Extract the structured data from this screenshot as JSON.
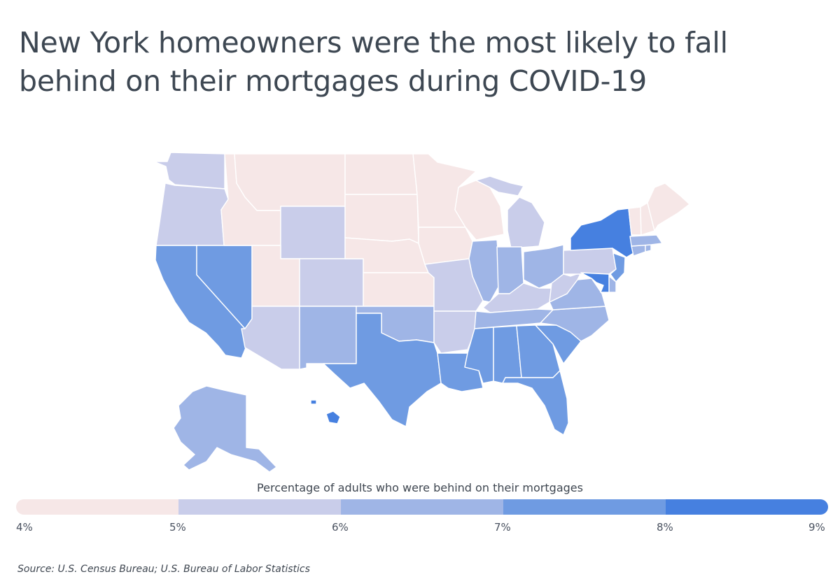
{
  "title": "New York homeowners were the most likely to fall behind on their mortgages during COVID-19",
  "legend": {
    "title": "Percentage of adults who were behind on their mortgages",
    "ticks": [
      "4%",
      "5%",
      "6%",
      "7%",
      "8%",
      "9%"
    ],
    "colors": [
      "#f6e7e7",
      "#c9cdea",
      "#9fb5e6",
      "#6f9be2",
      "#4680e0"
    ]
  },
  "source": "Source:  U.S. Census Bureau; U.S. Bureau of Labor Statistics",
  "chart_data": {
    "type": "choropleth",
    "value_label": "Percentage of adults who were behind on their mortgages",
    "scale_min": 4,
    "scale_max": 9,
    "bin_edges": [
      4,
      5,
      6,
      7,
      8,
      9
    ],
    "states": {
      "WA": 5.5,
      "OR": 5.5,
      "CA": 7.5,
      "NV": 7.5,
      "ID": 4.5,
      "MT": 4.5,
      "WY": 5.5,
      "UT": 4.5,
      "AZ": 5.5,
      "CO": 5.5,
      "NM": 6.5,
      "ND": 4.5,
      "SD": 4.5,
      "NE": 4.5,
      "KS": 4.5,
      "OK": 6.5,
      "TX": 7.5,
      "MN": 4.5,
      "IA": 4.5,
      "MO": 5.5,
      "AR": 5.5,
      "LA": 7.5,
      "WI": 4.5,
      "IL": 6.5,
      "MI": 5.5,
      "IN": 6.5,
      "OH": 6.5,
      "KY": 5.5,
      "TN": 6.5,
      "MS": 7.5,
      "AL": 7.5,
      "GA": 7.5,
      "FL": 7.5,
      "SC": 7.5,
      "NC": 6.5,
      "VA": 6.5,
      "WV": 5.5,
      "PA": 5.5,
      "NY": 8.5,
      "NJ": 7.5,
      "DE": 6.5,
      "MD": 8.5,
      "CT": 6.5,
      "RI": 6.5,
      "MA": 6.5,
      "VT": 4.5,
      "NH": 4.5,
      "ME": 4.5,
      "AK": 6.5,
      "HI": 8.5
    }
  }
}
